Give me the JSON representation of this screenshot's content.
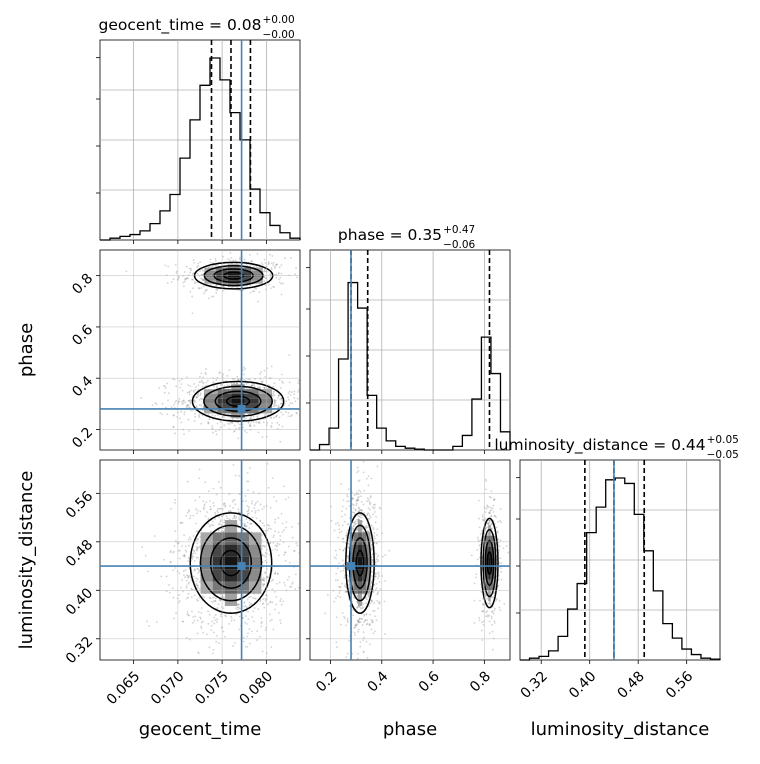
{
  "colors": {
    "truth": "#4682b4",
    "hist": "#000000",
    "grid": "#b0b0b0",
    "scatter": "#808080"
  },
  "chart_data": {
    "type": "corner",
    "parameters": [
      {
        "key": "geocent_time",
        "axis_label": "geocent_time",
        "range": [
          0.0612,
          0.0838
        ],
        "ticks": [
          "0.065",
          "0.070",
          "0.075",
          "0.080"
        ],
        "tick_values": [
          0.065,
          0.07,
          0.075,
          0.08
        ],
        "truth": 0.0772,
        "quantiles": [
          0.0738,
          0.076,
          0.0782
        ],
        "title": {
          "prefix": "geocent_time = 0.08",
          "sup": "+0.00",
          "sub": "−0.00"
        },
        "hist": [
          0,
          0.01,
          0.02,
          0.03,
          0.05,
          0.09,
          0.16,
          0.25,
          0.45,
          0.66,
          0.85,
          1.0,
          0.88,
          0.7,
          0.55,
          0.28,
          0.15,
          0.08,
          0.04,
          0.01
        ]
      },
      {
        "key": "phase",
        "axis_label": "phase",
        "range": [
          0.12,
          0.9
        ],
        "ticks": [
          "0.2",
          "0.4",
          "0.6",
          "0.8"
        ],
        "tick_values": [
          0.2,
          0.4,
          0.6,
          0.8
        ],
        "truth": 0.28,
        "quantiles": [
          0.28,
          0.345,
          0.82
        ],
        "title": {
          "prefix": "phase = 0.35",
          "sup": "+0.47",
          "sub": "−0.06"
        },
        "hist": [
          0,
          0.03,
          0.12,
          0.5,
          0.92,
          0.78,
          0.3,
          0.12,
          0.05,
          0.02,
          0.01,
          0.005,
          0,
          0,
          0,
          0.02,
          0.08,
          0.28,
          0.62,
          0.42,
          0.1
        ]
      },
      {
        "key": "luminosity_distance",
        "axis_label": "luminosity_distance",
        "range": [
          0.285,
          0.615
        ],
        "ticks": [
          "0.32",
          "0.40",
          "0.48",
          "0.56"
        ],
        "tick_values": [
          0.32,
          0.4,
          0.48,
          0.56
        ],
        "truth": 0.44,
        "quantiles": [
          0.392,
          0.44,
          0.49
        ],
        "title": {
          "prefix": "luminosity_distance = 0.44",
          "sup": "+0.05",
          "sub": "−0.05"
        },
        "hist": [
          0,
          0.01,
          0.02,
          0.05,
          0.13,
          0.28,
          0.42,
          0.7,
          0.84,
          0.99,
          1.0,
          0.97,
          0.8,
          0.6,
          0.38,
          0.2,
          0.12,
          0.06,
          0.03,
          0.01,
          0.005
        ]
      }
    ],
    "pair_modes": {
      "geocent_time|phase": [
        {
          "cx": 0.0763,
          "cy": 0.8,
          "sx": 0.0024,
          "sy": 0.028,
          "w": 0.35
        },
        {
          "cx": 0.0768,
          "cy": 0.31,
          "sx": 0.0028,
          "sy": 0.042,
          "w": 0.65
        }
      ],
      "geocent_time|luminosity_distance": [
        {
          "cx": 0.076,
          "cy": 0.445,
          "sx": 0.0025,
          "sy": 0.045,
          "w": 1.0
        }
      ],
      "phase|luminosity_distance": [
        {
          "cx": 0.315,
          "cy": 0.445,
          "sx": 0.03,
          "sy": 0.045,
          "w": 0.68
        },
        {
          "cx": 0.82,
          "cy": 0.445,
          "sx": 0.018,
          "sy": 0.04,
          "w": 0.32
        }
      ]
    },
    "contour_levels": [
      0.118,
      0.393,
      0.675,
      0.865
    ],
    "grid": true
  }
}
